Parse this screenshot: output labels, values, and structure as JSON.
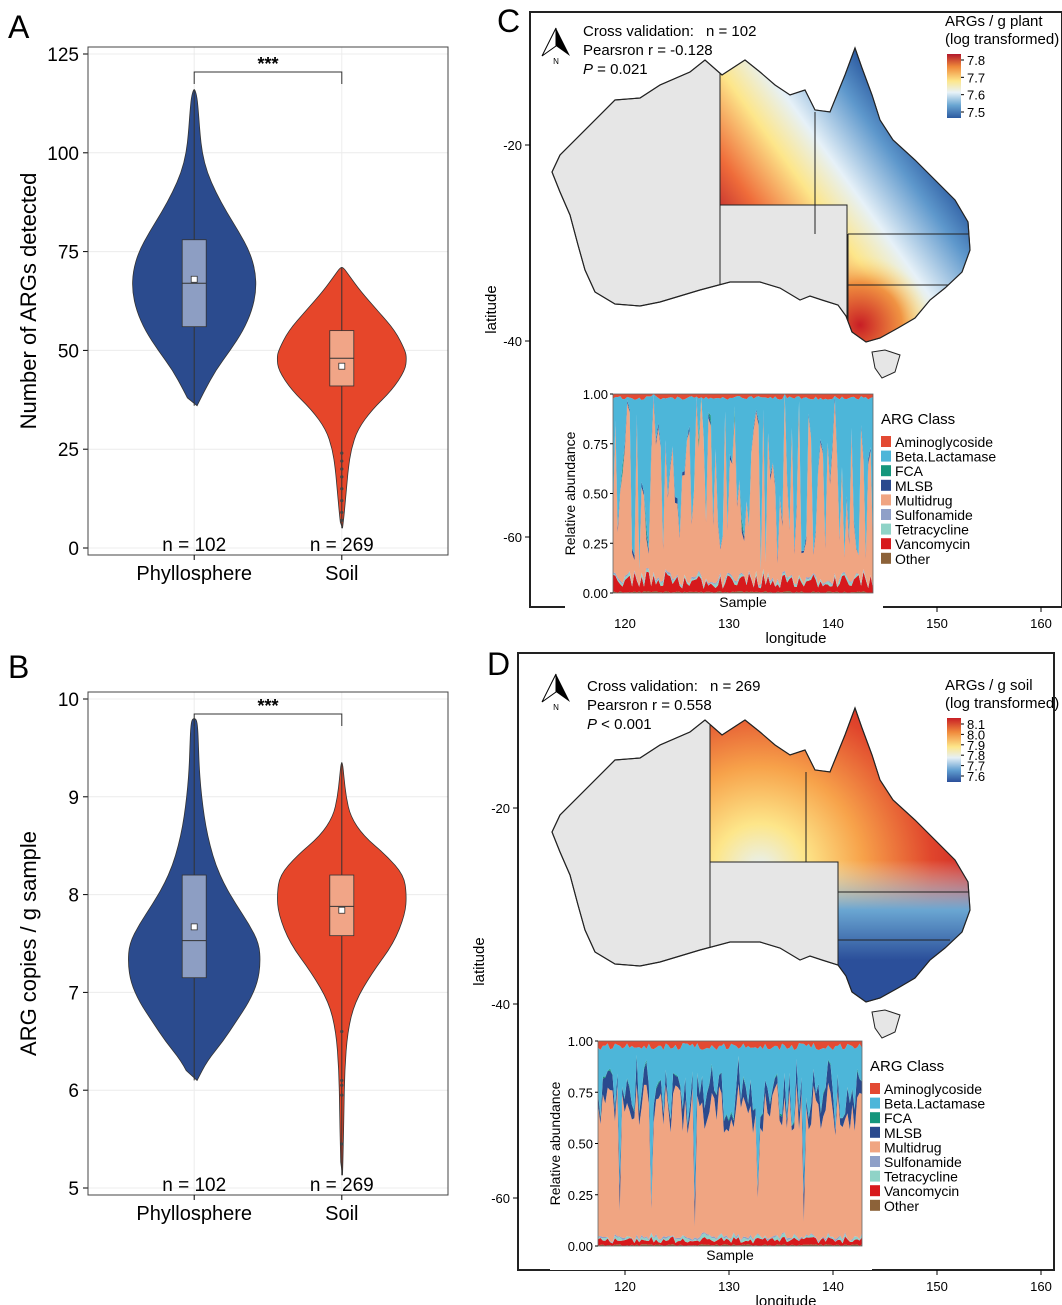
{
  "panel_labels": {
    "a": "A",
    "b": "B",
    "c": "C",
    "d": "D"
  },
  "colors": {
    "phyllosphere": "#2b4b8e",
    "soil": "#e6462a",
    "phyllo_box": "#8d9ec3",
    "soil_box": "#f1a587",
    "land": "#e6e6e6"
  },
  "north_label": "N",
  "chart_data": [
    {
      "id": "A",
      "type": "violin",
      "ylabel": "Number of ARGs detected",
      "ylim": [
        0,
        125
      ],
      "yticks": [
        0,
        25,
        50,
        75,
        100,
        125
      ],
      "grid": true,
      "significance": "***",
      "groups": [
        {
          "name": "Phyllosphere",
          "n_label": "n = 102",
          "min": 36,
          "max": 116,
          "q1": 56,
          "median": 67,
          "q3": 78,
          "mean": 68,
          "density": [
            [
              36,
              0.04
            ],
            [
              40,
              0.15
            ],
            [
              45,
              0.3
            ],
            [
              50,
              0.5
            ],
            [
              55,
              0.68
            ],
            [
              60,
              0.8
            ],
            [
              65,
              0.86
            ],
            [
              70,
              0.85
            ],
            [
              75,
              0.77
            ],
            [
              80,
              0.62
            ],
            [
              85,
              0.45
            ],
            [
              90,
              0.3
            ],
            [
              95,
              0.18
            ],
            [
              100,
              0.11
            ],
            [
              105,
              0.08
            ],
            [
              110,
              0.06
            ],
            [
              114,
              0.04
            ],
            [
              116,
              0.01
            ]
          ],
          "outliers": []
        },
        {
          "name": "Soil",
          "n_label": "n = 269",
          "min": 5,
          "max": 71,
          "q1": 41,
          "median": 48,
          "q3": 55,
          "mean": 46,
          "density": [
            [
              5,
              0.01
            ],
            [
              8,
              0.03
            ],
            [
              12,
              0.05
            ],
            [
              16,
              0.07
            ],
            [
              20,
              0.09
            ],
            [
              25,
              0.13
            ],
            [
              30,
              0.22
            ],
            [
              35,
              0.42
            ],
            [
              40,
              0.7
            ],
            [
              45,
              0.88
            ],
            [
              48,
              0.9
            ],
            [
              50,
              0.88
            ],
            [
              55,
              0.74
            ],
            [
              60,
              0.5
            ],
            [
              65,
              0.26
            ],
            [
              69,
              0.1
            ],
            [
              71,
              0.02
            ]
          ],
          "outliers": [
            7,
            9,
            12,
            15,
            18,
            20,
            22,
            24
          ]
        }
      ]
    },
    {
      "id": "B",
      "type": "violin",
      "ylabel": "ARG copies / g sample",
      "ylim": [
        5,
        10
      ],
      "yticks": [
        5,
        6,
        7,
        8,
        9,
        10
      ],
      "grid": true,
      "significance": "***",
      "groups": [
        {
          "name": "Phyllosphere",
          "n_label": "n = 102",
          "min": 6.1,
          "max": 9.8,
          "q1": 7.15,
          "median": 7.53,
          "q3": 8.2,
          "mean": 7.67,
          "density": [
            [
              6.1,
              0.04
            ],
            [
              6.3,
              0.18
            ],
            [
              6.5,
              0.4
            ],
            [
              6.7,
              0.58
            ],
            [
              6.9,
              0.76
            ],
            [
              7.1,
              0.88
            ],
            [
              7.3,
              0.92
            ],
            [
              7.5,
              0.9
            ],
            [
              7.7,
              0.76
            ],
            [
              7.9,
              0.58
            ],
            [
              8.1,
              0.42
            ],
            [
              8.3,
              0.3
            ],
            [
              8.5,
              0.22
            ],
            [
              8.7,
              0.16
            ],
            [
              8.9,
              0.12
            ],
            [
              9.1,
              0.09
            ],
            [
              9.3,
              0.07
            ],
            [
              9.5,
              0.06
            ],
            [
              9.7,
              0.05
            ],
            [
              9.8,
              0.03
            ]
          ],
          "outliers": []
        },
        {
          "name": "Soil",
          "n_label": "n = 269",
          "min": 5.13,
          "max": 9.35,
          "q1": 7.58,
          "median": 7.88,
          "q3": 8.2,
          "mean": 7.84,
          "density": [
            [
              5.13,
              0.01
            ],
            [
              5.4,
              0.02
            ],
            [
              5.8,
              0.03
            ],
            [
              6.2,
              0.04
            ],
            [
              6.6,
              0.08
            ],
            [
              6.9,
              0.18
            ],
            [
              7.2,
              0.42
            ],
            [
              7.5,
              0.72
            ],
            [
              7.8,
              0.88
            ],
            [
              8.0,
              0.9
            ],
            [
              8.2,
              0.86
            ],
            [
              8.4,
              0.62
            ],
            [
              8.6,
              0.3
            ],
            [
              8.8,
              0.12
            ],
            [
              9.0,
              0.06
            ],
            [
              9.2,
              0.03
            ],
            [
              9.35,
              0.01
            ]
          ],
          "outliers": [
            5.45,
            5.95,
            6.05,
            6.1,
            6.6
          ]
        }
      ]
    },
    {
      "id": "C",
      "type": "heatmap",
      "map_title": "ARGs / g plant",
      "map_subtitle": "(log transformed)",
      "legend_ticks": [
        "7.8",
        "7.7",
        "7.6",
        "7.5"
      ],
      "cv_title": "Cross validation:",
      "cv_n": "n = 102",
      "cv_r": "Pearsron r = -0.128",
      "cv_p_label": "P",
      "cv_p_value": " = 0.021",
      "xlabel": "longitude",
      "ylabel": "latitude",
      "xticks": [
        "120",
        "130",
        "140",
        "150",
        "160"
      ],
      "yticks": [
        "-20",
        "-40",
        "-60"
      ],
      "inset": {
        "type": "area",
        "xlabel": "Sample",
        "ylabel": "Relative abundance",
        "yticks": [
          "1.00",
          "0.75",
          "0.50",
          "0.25",
          "0.00"
        ],
        "legend_title": "ARG Class",
        "seed": 102
      }
    },
    {
      "id": "D",
      "type": "heatmap",
      "map_title": "ARGs / g soil",
      "map_subtitle": "(log transformed)",
      "legend_ticks": [
        "8.1",
        "8.0",
        "7.9",
        "7.8",
        "7.7",
        "7.6"
      ],
      "cv_title": "Cross validation:",
      "cv_n": "n = 269",
      "cv_r": "Pearsron r = 0.558",
      "cv_p_label": "P",
      "cv_p_value": " < 0.001",
      "xlabel": "longitude",
      "ylabel": "latitude",
      "xticks": [
        "120",
        "130",
        "140",
        "150",
        "160"
      ],
      "yticks": [
        "-20",
        "-40",
        "-60"
      ],
      "inset": {
        "type": "area",
        "xlabel": "Sample",
        "ylabel": "Relative abundance",
        "yticks": [
          "1.00",
          "0.75",
          "0.50",
          "0.25",
          "0.00"
        ],
        "legend_title": "ARG Class",
        "seed": 269
      }
    }
  ],
  "arg_classes": [
    {
      "name": "Aminoglycoside",
      "color": "#e34a33"
    },
    {
      "name": "Beta.Lactamase",
      "color": "#4db6d9"
    },
    {
      "name": "FCA",
      "color": "#14967c"
    },
    {
      "name": "MLSB",
      "color": "#2a4a8e"
    },
    {
      "name": "Multidrug",
      "color": "#f0a582"
    },
    {
      "name": "Sulfonamide",
      "color": "#8fa0c8"
    },
    {
      "name": "Tetracycline",
      "color": "#8fd3c7"
    },
    {
      "name": "Vancomycin",
      "color": "#d7191c"
    },
    {
      "name": "Other",
      "color": "#8c6239"
    }
  ]
}
